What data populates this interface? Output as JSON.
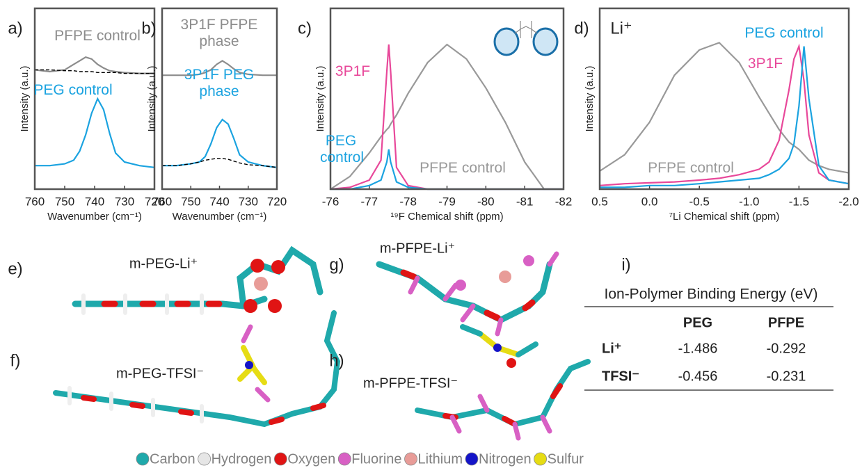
{
  "chart_data": [
    {
      "type": "line",
      "label": "a)",
      "xlabel": "Wavenumber (cm⁻¹)",
      "ylabel": "Intensity (a.u.)",
      "x": [
        760,
        755,
        750,
        747,
        745,
        743,
        741,
        739,
        737,
        735,
        733,
        730,
        725,
        720
      ],
      "xlim": [
        760,
        720
      ],
      "xticks": [
        760,
        750,
        740,
        730,
        720
      ],
      "ylim": [
        0,
        1
      ],
      "series": [
        {
          "name": "PFPE control",
          "color": "#8c8c8c",
          "values": [
            0.66,
            0.65,
            0.66,
            0.69,
            0.71,
            0.73,
            0.72,
            0.69,
            0.67,
            0.655,
            0.65,
            0.645,
            0.64,
            0.64
          ]
        },
        {
          "color": "#000000",
          "dashed": true,
          "values": [
            0.66,
            0.66,
            0.655,
            0.655,
            0.65,
            0.65,
            0.65,
            0.645,
            0.645,
            0.645,
            0.645,
            0.64,
            0.64,
            0.64
          ]
        },
        {
          "name": "PEG control",
          "color": "#1ba3e0",
          "values": [
            0.13,
            0.13,
            0.14,
            0.16,
            0.21,
            0.3,
            0.42,
            0.5,
            0.44,
            0.31,
            0.2,
            0.15,
            0.13,
            0.12
          ]
        }
      ]
    },
    {
      "type": "line",
      "label": "b)",
      "xlabel": "Wavenumber (cm⁻¹)",
      "ylabel": "Intensity (a.u.)",
      "x": [
        760,
        755,
        750,
        747,
        745,
        743,
        741,
        739,
        737,
        735,
        733,
        730,
        725,
        720
      ],
      "xlim": [
        760,
        720
      ],
      "xticks": [
        760,
        750,
        740,
        730,
        720
      ],
      "ylim": [
        0,
        1
      ],
      "series": [
        {
          "name": "3P1F PFPE phase",
          "color": "#8c8c8c",
          "values": [
            0.63,
            0.63,
            0.63,
            0.635,
            0.645,
            0.66,
            0.69,
            0.71,
            0.69,
            0.665,
            0.645,
            0.635,
            0.63,
            0.63
          ]
        },
        {
          "name": "3P1F PEG phase",
          "color": "#1ba3e0",
          "values": [
            0.13,
            0.13,
            0.14,
            0.15,
            0.18,
            0.25,
            0.34,
            0.385,
            0.36,
            0.28,
            0.19,
            0.15,
            0.13,
            0.12
          ]
        },
        {
          "color": "#000000",
          "dashed": true,
          "values": [
            0.13,
            0.13,
            0.14,
            0.15,
            0.16,
            0.165,
            0.17,
            0.17,
            0.165,
            0.155,
            0.145,
            0.135,
            0.13,
            0.12
          ]
        }
      ]
    },
    {
      "type": "line",
      "label": "c)",
      "xlabel": "¹⁹F Chemical shift (ppm)",
      "ylabel": "Intensity (a.u.)",
      "x": [
        -76,
        -76.5,
        -77,
        -77.3,
        -77.45,
        -77.5,
        -77.55,
        -77.7,
        -78,
        -78.5,
        -79,
        -79.5,
        -80,
        -80.5,
        -81,
        -81.5,
        -82
      ],
      "xlim": [
        -76,
        -82
      ],
      "xticks": [
        -76,
        -77,
        -78,
        -79,
        -80,
        -81,
        -82
      ],
      "ylim": [
        0,
        1
      ],
      "series": [
        {
          "name": "PFPE control",
          "color": "#999999",
          "values": [
            0,
            0.07,
            0.2,
            0.29,
            0.33,
            0.34,
            0.36,
            0.41,
            0.53,
            0.7,
            0.8,
            0.72,
            0.56,
            0.37,
            0.15,
            0,
            0
          ]
        },
        {
          "name": "3P1F",
          "color": "#e8489a",
          "values": [
            0,
            0.01,
            0.05,
            0.16,
            0.65,
            0.8,
            0.65,
            0.12,
            0.02,
            0,
            0,
            0,
            0,
            0,
            0,
            0,
            0
          ]
        },
        {
          "name": "PEG control",
          "color": "#1ba3e0",
          "values": [
            0,
            0,
            0.02,
            0.05,
            0.15,
            0.22,
            0.15,
            0.04,
            0.01,
            0,
            0,
            0,
            0,
            0,
            0,
            0,
            0
          ]
        }
      ]
    },
    {
      "type": "line",
      "label": "d)",
      "annotation": "Li⁺",
      "xlabel": "⁷Li Chemical shift (ppm)",
      "ylabel": "Intensity (a.u.)",
      "x": [
        0.5,
        0.25,
        0,
        -0.25,
        -0.5,
        -0.7,
        -0.9,
        -1.1,
        -1.2,
        -1.3,
        -1.4,
        -1.45,
        -1.5,
        -1.55,
        -1.6,
        -1.7,
        -1.8,
        -2.0
      ],
      "xlim": [
        0.5,
        -2.0
      ],
      "xticks": [
        0.5,
        {
          "value": 0,
          "label": "0.0"
        },
        -0.5,
        {
          "value": -1,
          "label": "-1.0"
        },
        -1.5,
        {
          "value": -2,
          "label": "-2.0"
        }
      ],
      "ylim": [
        0,
        1
      ],
      "series": [
        {
          "name": "PFPE control",
          "color": "#999999",
          "values": [
            0.1,
            0.19,
            0.37,
            0.63,
            0.77,
            0.81,
            0.7,
            0.51,
            0.42,
            0.33,
            0.26,
            0.24,
            0.22,
            0.19,
            0.16,
            0.13,
            0.11,
            0.09
          ]
        },
        {
          "name": "3P1F",
          "color": "#e8489a",
          "values": [
            0.02,
            0.03,
            0.035,
            0.04,
            0.05,
            0.06,
            0.08,
            0.11,
            0.15,
            0.27,
            0.55,
            0.72,
            0.79,
            0.6,
            0.3,
            0.09,
            0.05,
            0.03
          ]
        },
        {
          "name": "PEG control",
          "color": "#1ba3e0",
          "values": [
            0.01,
            0.01,
            0.02,
            0.02,
            0.03,
            0.04,
            0.05,
            0.06,
            0.08,
            0.11,
            0.17,
            0.25,
            0.46,
            0.79,
            0.5,
            0.13,
            0.05,
            0.03
          ]
        }
      ]
    }
  ],
  "molecules": [
    {
      "panel": "e)",
      "label": "m-PEG-Li⁺"
    },
    {
      "panel": "f)",
      "label": "m-PEG-TFSI⁻"
    },
    {
      "panel": "g)",
      "label": "m-PFPE-Li⁺"
    },
    {
      "panel": "h)",
      "label": "m-PFPE-TFSI⁻"
    }
  ],
  "table": {
    "panel": "i)",
    "title": "Ion-Polymer Binding Energy (eV)",
    "columns": [
      "PEG",
      "PFPE"
    ],
    "rows": [
      {
        "label": "Li⁺",
        "values": [
          -1.486,
          -0.292
        ]
      },
      {
        "label": "TFSI⁻",
        "values": [
          -0.456,
          -0.231
        ]
      }
    ]
  },
  "atom_legend": [
    {
      "name": "Carbon",
      "color": "#1fa9ab"
    },
    {
      "name": "Hydrogen",
      "color": "#e6e6e6"
    },
    {
      "name": "Oxygen",
      "color": "#e01414"
    },
    {
      "name": "Fluorine",
      "color": "#d860c4"
    },
    {
      "name": "Lithium",
      "color": "#e89c98"
    },
    {
      "name": "Nitrogen",
      "color": "#1414c8"
    },
    {
      "name": "Sulfur",
      "color": "#e6dc14"
    }
  ]
}
